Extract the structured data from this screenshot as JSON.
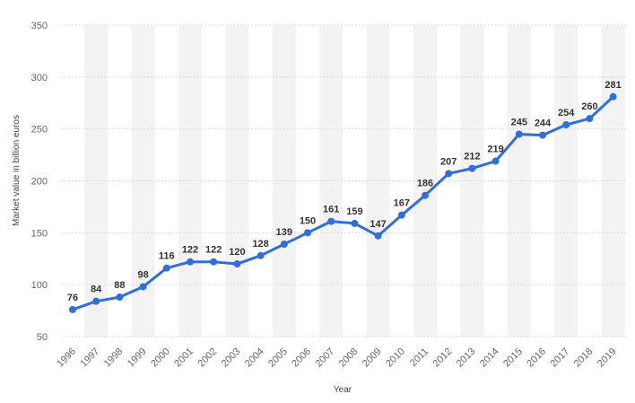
{
  "chart_data": {
    "type": "line",
    "title": "",
    "xlabel": "Year",
    "ylabel": "Market value in billion euros",
    "ylim": [
      50,
      350
    ],
    "yticks": [
      50,
      100,
      150,
      200,
      250,
      300,
      350
    ],
    "grid": true,
    "categories": [
      "1996",
      "1997",
      "1998",
      "1999",
      "2000",
      "2001",
      "2002",
      "2003",
      "2004",
      "2005",
      "2006",
      "2007",
      "2008",
      "2009",
      "2010",
      "2011",
      "2012",
      "2013",
      "2014",
      "2015",
      "2016",
      "2017",
      "2018",
      "2019"
    ],
    "series": [
      {
        "values": [
          76,
          84,
          88,
          98,
          116,
          122,
          122,
          120,
          128,
          139,
          150,
          161,
          159,
          147,
          167,
          186,
          207,
          212,
          219,
          245,
          244,
          254,
          260,
          281
        ]
      }
    ],
    "line_color": "#2f6fdc",
    "grid_color": "#d9d9d9",
    "band_color": "#f3f3f3"
  }
}
